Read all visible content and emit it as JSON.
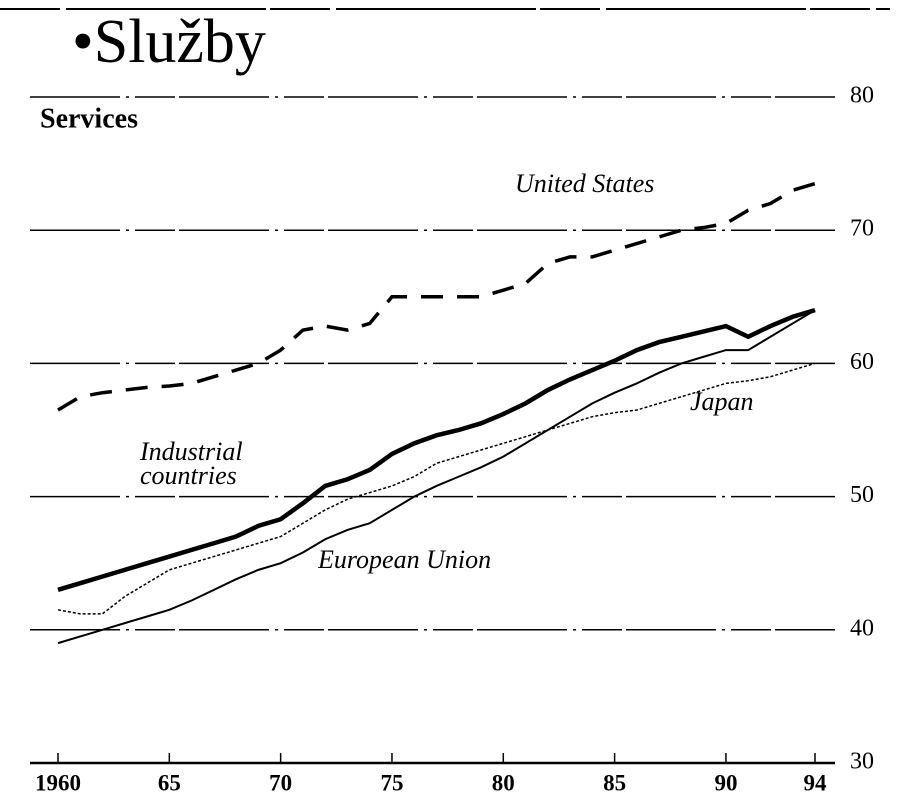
{
  "chart_data": {
    "type": "line",
    "slide_title": "•Služby",
    "title": "Services",
    "x": [
      1960,
      1961,
      1962,
      1963,
      1964,
      1965,
      1966,
      1967,
      1968,
      1969,
      1970,
      1971,
      1972,
      1973,
      1974,
      1975,
      1976,
      1977,
      1978,
      1979,
      1980,
      1981,
      1982,
      1983,
      1984,
      1985,
      1986,
      1987,
      1988,
      1989,
      1990,
      1991,
      1992,
      1993,
      1994
    ],
    "series": [
      {
        "name": "United States",
        "color": "#000000",
        "line_style": "dashed",
        "values": [
          56.5,
          57.5,
          57.8,
          58,
          58.2,
          58.3,
          58.5,
          59,
          59.5,
          60,
          61,
          62.5,
          62.8,
          62.5,
          63,
          65,
          65,
          65,
          65,
          65,
          65.5,
          66,
          67.5,
          68,
          68,
          68.5,
          69,
          69.5,
          70,
          70.2,
          70.5,
          71.5,
          72,
          73,
          73.5
        ]
      },
      {
        "name": "Industrial countries",
        "color": "#000000",
        "line_style": "thick",
        "values": [
          43,
          43.5,
          44,
          44.5,
          45,
          45.5,
          46,
          46.5,
          47,
          47.8,
          48.3,
          49.5,
          50.8,
          51.3,
          52,
          53.2,
          54,
          54.6,
          55,
          55.5,
          56.2,
          57,
          58,
          58.8,
          59.5,
          60.2,
          61,
          61.6,
          62,
          62.4,
          62.8,
          62,
          62.8,
          63.5,
          64
        ]
      },
      {
        "name": "European Union",
        "color": "#000000",
        "line_style": "thin",
        "values": [
          39,
          39.5,
          40,
          40.5,
          41,
          41.5,
          42.2,
          43,
          43.8,
          44.5,
          45,
          45.8,
          46.8,
          47.5,
          48,
          49,
          50,
          50.8,
          51.5,
          52.2,
          53,
          54,
          55,
          56,
          57,
          57.8,
          58.5,
          59.3,
          60,
          60.5,
          61,
          61,
          62,
          63,
          64
        ]
      },
      {
        "name": "Japan",
        "color": "#000000",
        "line_style": "dotted",
        "values": [
          41.5,
          41.2,
          41.2,
          42.5,
          43.5,
          44.5,
          45,
          45.5,
          46,
          46.5,
          47,
          48,
          49,
          49.8,
          50.3,
          50.8,
          51.5,
          52.5,
          53,
          53.5,
          54,
          54.5,
          55,
          55.5,
          56,
          56.3,
          56.5,
          57,
          57.5,
          58,
          58.5,
          58.7,
          59,
          59.5,
          60
        ]
      }
    ],
    "xlim": [
      1960,
      1994
    ],
    "xticks": [
      1960,
      {
        "value": 1965,
        "label": "65"
      },
      {
        "value": 1970,
        "label": "70"
      },
      {
        "value": 1975,
        "label": "75"
      },
      {
        "value": 1980,
        "label": "80"
      },
      {
        "value": 1985,
        "label": "85"
      },
      {
        "value": 1990,
        "label": "90"
      },
      {
        "value": 1994,
        "label": "94"
      }
    ],
    "ylim": [
      30,
      80
    ],
    "yticks": [
      30,
      40,
      50,
      60,
      70,
      80
    ],
    "grid": true
  }
}
